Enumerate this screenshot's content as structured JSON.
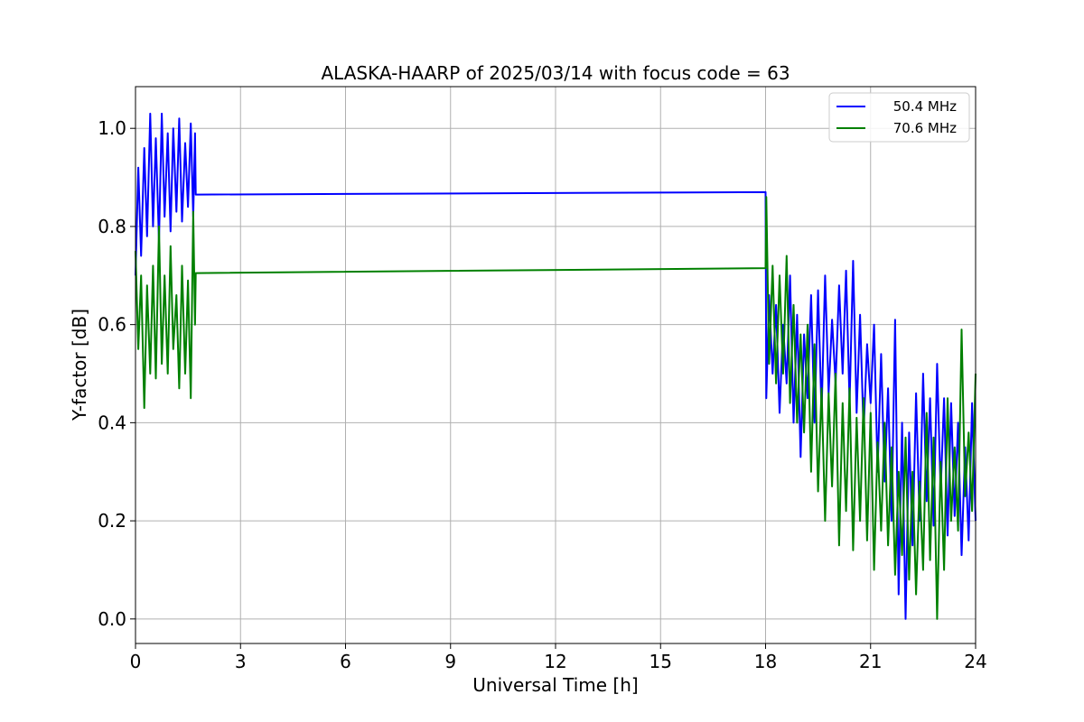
{
  "chart_data": {
    "type": "line",
    "title": "ALASKA-HAARP of 2025/03/14 with focus code = 63",
    "xlabel": "Universal Time [h]",
    "ylabel": "Y-factor [dB]",
    "xlim": [
      0,
      24
    ],
    "ylim": [
      -0.05,
      1.085
    ],
    "xticks": [
      0,
      3,
      6,
      9,
      12,
      15,
      18,
      21,
      24
    ],
    "yticks": [
      0.0,
      0.2,
      0.4,
      0.6,
      0.8,
      1.0
    ],
    "xtick_labels": [
      "0",
      "3",
      "6",
      "9",
      "12",
      "15",
      "18",
      "21",
      "24"
    ],
    "ytick_labels": [
      "0.0",
      "0.2",
      "0.4",
      "0.6",
      "0.8",
      "1.0"
    ],
    "grid": true,
    "legend_position": "top-right",
    "series": [
      {
        "name": "50.4 MHz",
        "color": "#0000ff",
        "x": [
          0.0,
          0.08,
          0.16,
          0.25,
          0.33,
          0.42,
          0.5,
          0.58,
          0.67,
          0.75,
          0.83,
          0.92,
          1.0,
          1.08,
          1.17,
          1.25,
          1.33,
          1.42,
          1.5,
          1.58,
          1.65,
          1.7,
          1.72,
          18.0,
          18.02,
          18.1,
          18.2,
          18.3,
          18.4,
          18.5,
          18.6,
          18.7,
          18.8,
          18.9,
          19.0,
          19.1,
          19.2,
          19.3,
          19.4,
          19.5,
          19.6,
          19.7,
          19.8,
          19.9,
          20.0,
          20.1,
          20.2,
          20.3,
          20.4,
          20.5,
          20.6,
          20.7,
          20.8,
          20.9,
          21.0,
          21.1,
          21.2,
          21.3,
          21.4,
          21.5,
          21.6,
          21.7,
          21.8,
          21.9,
          22.0,
          22.1,
          22.2,
          22.3,
          22.4,
          22.5,
          22.6,
          22.7,
          22.8,
          22.9,
          23.0,
          23.1,
          23.2,
          23.3,
          23.4,
          23.5,
          23.6,
          23.7,
          23.8,
          23.9,
          24.0
        ],
        "y": [
          0.7,
          0.92,
          0.74,
          0.96,
          0.78,
          1.03,
          0.8,
          0.98,
          0.77,
          1.03,
          0.82,
          0.99,
          0.79,
          1.0,
          0.83,
          1.02,
          0.81,
          0.97,
          0.84,
          1.01,
          0.82,
          0.99,
          0.865,
          0.87,
          0.45,
          0.66,
          0.5,
          0.64,
          0.42,
          0.6,
          0.48,
          0.7,
          0.4,
          0.62,
          0.33,
          0.58,
          0.45,
          0.66,
          0.4,
          0.67,
          0.42,
          0.7,
          0.46,
          0.61,
          0.48,
          0.68,
          0.5,
          0.71,
          0.44,
          0.73,
          0.42,
          0.62,
          0.38,
          0.56,
          0.44,
          0.6,
          0.3,
          0.54,
          0.28,
          0.47,
          0.2,
          0.61,
          0.05,
          0.4,
          0.0,
          0.38,
          0.15,
          0.46,
          0.2,
          0.5,
          0.24,
          0.45,
          0.19,
          0.52,
          0.26,
          0.45,
          0.17,
          0.44,
          0.21,
          0.4,
          0.13,
          0.35,
          0.16,
          0.44,
          0.2
        ]
      },
      {
        "name": "70.6 MHz",
        "color": "#008000",
        "x": [
          0.0,
          0.08,
          0.16,
          0.25,
          0.33,
          0.42,
          0.5,
          0.58,
          0.67,
          0.75,
          0.83,
          0.92,
          1.0,
          1.08,
          1.17,
          1.25,
          1.33,
          1.42,
          1.5,
          1.58,
          1.65,
          1.7,
          1.72,
          18.0,
          18.02,
          18.1,
          18.2,
          18.3,
          18.4,
          18.5,
          18.6,
          18.7,
          18.8,
          18.9,
          19.0,
          19.1,
          19.2,
          19.3,
          19.4,
          19.5,
          19.6,
          19.7,
          19.8,
          19.9,
          20.0,
          20.1,
          20.2,
          20.3,
          20.4,
          20.5,
          20.6,
          20.7,
          20.8,
          20.9,
          21.0,
          21.1,
          21.2,
          21.3,
          21.4,
          21.5,
          21.6,
          21.7,
          21.8,
          21.9,
          22.0,
          22.1,
          22.2,
          22.3,
          22.4,
          22.5,
          22.6,
          22.7,
          22.8,
          22.9,
          23.0,
          23.1,
          23.2,
          23.3,
          23.4,
          23.5,
          23.6,
          23.7,
          23.8,
          23.9,
          24.0
        ],
        "y": [
          0.75,
          0.55,
          0.7,
          0.43,
          0.68,
          0.5,
          0.72,
          0.49,
          0.8,
          0.52,
          0.7,
          0.5,
          0.76,
          0.55,
          0.66,
          0.47,
          0.72,
          0.5,
          0.69,
          0.45,
          0.83,
          0.6,
          0.705,
          0.715,
          0.86,
          0.52,
          0.72,
          0.48,
          0.7,
          0.5,
          0.74,
          0.44,
          0.64,
          0.4,
          0.58,
          0.38,
          0.6,
          0.3,
          0.56,
          0.26,
          0.47,
          0.2,
          0.46,
          0.27,
          0.5,
          0.15,
          0.44,
          0.22,
          0.47,
          0.14,
          0.41,
          0.2,
          0.45,
          0.16,
          0.42,
          0.1,
          0.36,
          0.18,
          0.4,
          0.15,
          0.35,
          0.09,
          0.3,
          0.13,
          0.37,
          0.08,
          0.3,
          0.05,
          0.28,
          0.1,
          0.42,
          0.12,
          0.37,
          0.0,
          0.32,
          0.1,
          0.45,
          0.2,
          0.35,
          0.18,
          0.59,
          0.25,
          0.38,
          0.22,
          0.5
        ]
      }
    ]
  }
}
